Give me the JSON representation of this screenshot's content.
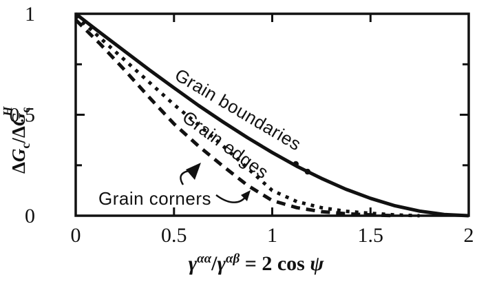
{
  "figure": {
    "background": "#ffffff",
    "ink_color": "#111111"
  },
  "chart_data": {
    "type": "line",
    "title": "",
    "xlabel": "γαα/γαβ = 2 cos ψ",
    "ylabel": "ΔGc/ΔGcH",
    "xlim": [
      0,
      2
    ],
    "ylim": [
      0,
      1
    ],
    "grid": false,
    "legend_position": "inline curve labels",
    "x_tick_labels": [
      {
        "text": "0",
        "value": 0
      },
      {
        "text": "0.5",
        "value": 0.5
      },
      {
        "text": "1",
        "value": 1
      },
      {
        "text": "1.5",
        "value": 1.5
      },
      {
        "text": "2",
        "value": 2
      }
    ],
    "y_tick_labels": [
      {
        "text": "0",
        "value": 0
      },
      {
        "text": "0.5",
        "value": 0.5
      },
      {
        "text": "1",
        "value": 1
      }
    ],
    "x_major_ticks": [
      0.5,
      1,
      1.5
    ],
    "y_major_ticks": [
      0.5
    ],
    "y_minor_ticks": [
      0.25,
      0.75
    ],
    "series": [
      {
        "name": "Grain boundaries",
        "line_style": "solid",
        "x": [
          0,
          0.125,
          0.25,
          0.375,
          0.5,
          0.625,
          0.75,
          0.875,
          1,
          1.125,
          1.25,
          1.375,
          1.5,
          1.625,
          1.75,
          1.875,
          2
        ],
        "y": [
          1,
          0.906,
          0.814,
          0.722,
          0.633,
          0.546,
          0.464,
          0.386,
          0.313,
          0.245,
          0.185,
          0.131,
          0.086,
          0.049,
          0.023,
          0.006,
          0
        ]
      },
      {
        "name": "Grain edges",
        "line_style": "dotted",
        "x": [
          0,
          0.125,
          0.25,
          0.375,
          0.5,
          0.625,
          0.75,
          0.875,
          1,
          1.125,
          1.25,
          1.375,
          1.5,
          1.625,
          1.75
        ],
        "y": [
          0.99,
          0.88,
          0.77,
          0.66,
          0.55,
          0.45,
          0.345,
          0.235,
          0.125,
          0.07,
          0.04,
          0.022,
          0.012,
          0.004,
          0
        ]
      },
      {
        "name": "Grain corners",
        "line_style": "dashed",
        "x": [
          0,
          0.125,
          0.25,
          0.375,
          0.5,
          0.625,
          0.75,
          0.875,
          1,
          1.125,
          1.25,
          1.375,
          1.5,
          1.625
        ],
        "y": [
          0.97,
          0.85,
          0.72,
          0.585,
          0.455,
          0.345,
          0.245,
          0.15,
          0.075,
          0.04,
          0.02,
          0.01,
          0.004,
          0
        ]
      }
    ],
    "annotations": {
      "kink_dots": [
        {
          "x": 1.12,
          "y": 0.256
        },
        {
          "x": 1.18,
          "y": 0.218
        }
      ]
    }
  },
  "curve_labels": {
    "boundaries": "Grain boundaries",
    "edges": "Grain edges",
    "corners": "Grain corners"
  },
  "x_axis_label": {
    "gamma1": "γ",
    "sup1": "αα",
    "slash": "/",
    "gamma2": "γ",
    "sup2": "αβ",
    "equals": " = 2 cos ",
    "psi": "ψ"
  },
  "y_axis_label": {
    "delta1": "Δ",
    "G1": "G",
    "sub1": "c",
    "slash": "/",
    "delta2": "Δ",
    "G2": "G",
    "sub2": "c",
    "sup": "H"
  }
}
